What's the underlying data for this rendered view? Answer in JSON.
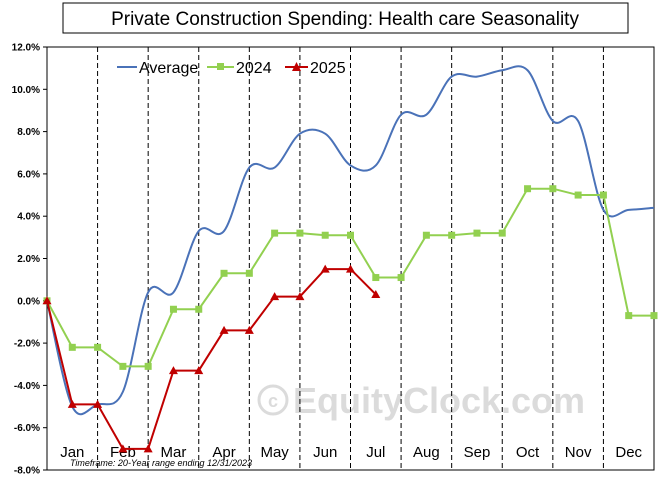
{
  "chart_data": {
    "type": "line",
    "title": "Private Construction Spending: Health care Seasonality",
    "footnote": "Timeframe: 20-Year range ending 12/31/2023",
    "watermark": "EquityClock.com",
    "ylim": [
      -8,
      12
    ],
    "ytick_labels": [
      "12.0%",
      "10.0%",
      "8.0%",
      "6.0%",
      "4.0%",
      "2.0%",
      "0.0%",
      "-2.0%",
      "-4.0%",
      "-6.0%",
      "-8.0%"
    ],
    "ytick_values": [
      12,
      10,
      8,
      6,
      4,
      2,
      0,
      -2,
      -4,
      -6,
      -8
    ],
    "month_labels": [
      "Jan",
      "Feb",
      "Mar",
      "Apr",
      "May",
      "Jun",
      "Jul",
      "Aug",
      "Sep",
      "Oct",
      "Nov",
      "Dec"
    ],
    "grid": "vertical dashed month separators",
    "legend_position": "top-left",
    "colors": {
      "average": "#4a72b8",
      "y2024": "#92d050",
      "y2025": "#c00000"
    },
    "series": [
      {
        "name": "Average",
        "style": "smooth-line",
        "x": [
          0,
          0.5,
          1,
          1.5,
          2,
          2.5,
          3,
          3.5,
          4,
          4.5,
          5,
          5.5,
          6,
          6.5,
          7,
          7.5,
          8,
          8.5,
          9,
          9.5,
          10,
          10.5,
          11,
          11.5,
          12
        ],
        "values": [
          0.0,
          -5.0,
          -4.9,
          -4.3,
          0.4,
          0.4,
          3.3,
          3.3,
          6.3,
          6.3,
          7.9,
          7.9,
          6.4,
          6.4,
          8.8,
          8.8,
          10.6,
          10.6,
          10.9,
          10.9,
          8.5,
          8.5,
          4.3,
          4.3,
          4.4
        ]
      },
      {
        "name": "2024",
        "style": "line-square-markers",
        "x": [
          0,
          0.5,
          1,
          1.5,
          2,
          2.5,
          3,
          3.5,
          4,
          4.5,
          5,
          5.5,
          6,
          6.5,
          7,
          7.5,
          8,
          8.5,
          9,
          9.5,
          10,
          10.5,
          11,
          11.5,
          12
        ],
        "values": [
          0.0,
          -2.2,
          -2.2,
          -3.1,
          -3.1,
          -0.4,
          -0.4,
          1.3,
          1.3,
          3.2,
          3.2,
          3.1,
          3.1,
          1.1,
          1.1,
          3.1,
          3.1,
          3.2,
          3.2,
          5.3,
          5.3,
          5.0,
          5.0,
          -0.7,
          -0.7
        ]
      },
      {
        "name": "2025",
        "style": "line-triangle-markers",
        "x": [
          0,
          0.5,
          1,
          1.5,
          2,
          2.5,
          3,
          3.5,
          4,
          4.5,
          5,
          5.5,
          6,
          6.5
        ],
        "values": [
          0.0,
          -4.9,
          -4.9,
          -7.0,
          -7.0,
          -3.3,
          -3.3,
          -1.4,
          -1.4,
          0.2,
          0.2,
          1.5,
          1.5,
          0.3
        ]
      }
    ]
  }
}
